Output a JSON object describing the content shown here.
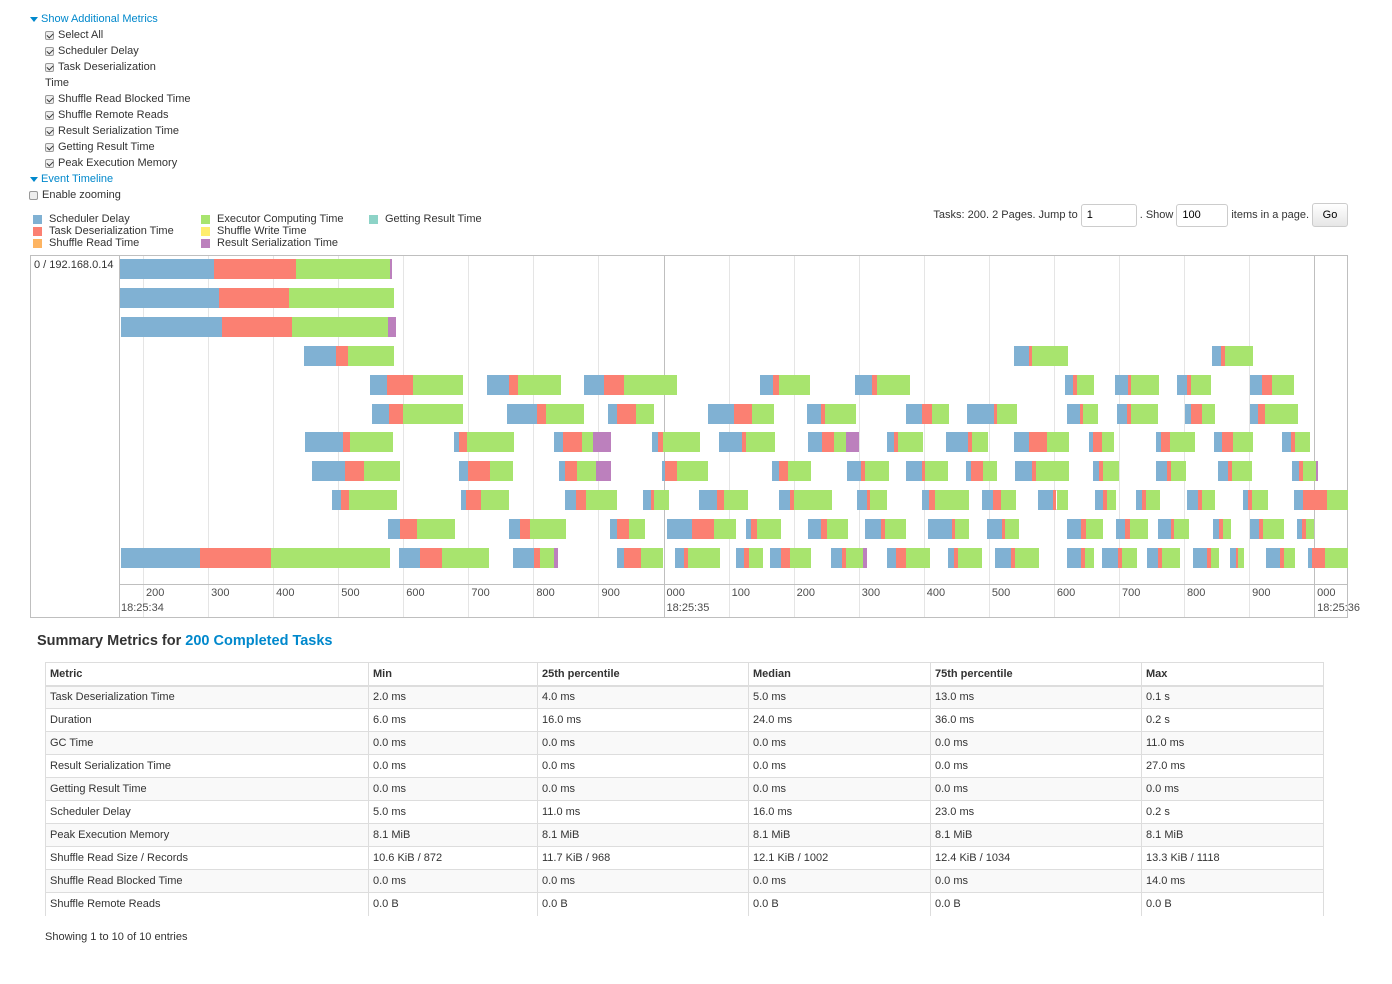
{
  "additional_metrics": {
    "toggle_label": "Show Additional Metrics",
    "checkboxes": [
      {
        "label": "Select All",
        "checked": true
      },
      {
        "label": "Scheduler Delay",
        "checked": true
      },
      {
        "label": "Task Deserialization",
        "label_wrap": "Time",
        "checked": true
      },
      {
        "label": "Shuffle Read Blocked Time",
        "checked": true
      },
      {
        "label": "Shuffle Remote Reads",
        "checked": true
      },
      {
        "label": "Result Serialization Time",
        "checked": true
      },
      {
        "label": "Getting Result Time",
        "checked": true
      },
      {
        "label": "Peak Execution Memory",
        "checked": true
      }
    ]
  },
  "event_timeline": {
    "toggle_label": "Event Timeline",
    "enable_zooming": {
      "label": "Enable zooming",
      "checked": false
    },
    "legend": [
      {
        "label": "Scheduler Delay",
        "color": "#80B1D3"
      },
      {
        "label": "Task Deserialization Time",
        "color": "#FB8072"
      },
      {
        "label": "Shuffle Read Time",
        "color": "#FDB462"
      },
      {
        "label": "Executor Computing Time",
        "color": "#A8E46E"
      },
      {
        "label": "Shuffle Write Time",
        "color": "#FFED6F"
      },
      {
        "label": "Result Serialization Time",
        "color": "#BC80BD"
      },
      {
        "label": "Getting Result Time",
        "color": "#8DD3C7"
      }
    ],
    "pager": {
      "text_tasks": "Tasks: 200. 2 Pages. Jump to",
      "page_value": "1",
      "text_show": ". Show",
      "page_size_value": "100",
      "text_items": "items in a page.",
      "go_label": "Go"
    },
    "executor_label": "0 / 192.168.0.14",
    "x_range_ms": [
      164.6,
      2052
    ],
    "ticks": [
      {
        "ms": 200,
        "label": "200",
        "sub": "18:25:34"
      },
      {
        "ms": 300,
        "label": "300"
      },
      {
        "ms": 400,
        "label": "400"
      },
      {
        "ms": 500,
        "label": "500"
      },
      {
        "ms": 600,
        "label": "600"
      },
      {
        "ms": 700,
        "label": "700"
      },
      {
        "ms": 800,
        "label": "800"
      },
      {
        "ms": 900,
        "label": "900"
      },
      {
        "ms": 1000,
        "label": "000",
        "sub": "18:25:35",
        "major": true
      },
      {
        "ms": 1100,
        "label": "100"
      },
      {
        "ms": 1200,
        "label": "200"
      },
      {
        "ms": 1300,
        "label": "300"
      },
      {
        "ms": 1400,
        "label": "400"
      },
      {
        "ms": 1500,
        "label": "500"
      },
      {
        "ms": 1600,
        "label": "600"
      },
      {
        "ms": 1700,
        "label": "700"
      },
      {
        "ms": 1800,
        "label": "800"
      },
      {
        "ms": 1900,
        "label": "900"
      },
      {
        "ms": 2000,
        "label": "000",
        "sub": "18:25:36",
        "major": true
      }
    ],
    "task_fields": [
      "start_ms",
      "scheduler_delay",
      "deserialization",
      "computing",
      "result_serialization"
    ],
    "rows": [
      [
        [
          164,
          145,
          126,
          145,
          3
        ]
      ],
      [
        [
          164,
          152,
          109,
          160
        ]
      ],
      [
        [
          166,
          155,
          108,
          148,
          12
        ]
      ],
      [
        [
          448,
          49,
          18,
          71
        ],
        [
          1538,
          23,
          6,
          55
        ],
        [
          1843,
          14,
          6,
          43
        ]
      ],
      [
        [
          549,
          26,
          40,
          77
        ],
        [
          729,
          34,
          14,
          66
        ],
        [
          877,
          31,
          32,
          80
        ],
        [
          1149,
          20,
          8,
          48
        ],
        [
          1294,
          26,
          8,
          51
        ],
        [
          1617,
          12,
          6,
          26
        ],
        [
          1694,
          20,
          5,
          42
        ],
        [
          1789,
          15,
          6,
          32
        ],
        [
          1902,
          18,
          15,
          34
        ]
      ],
      [
        [
          552,
          26,
          22,
          92
        ],
        [
          760,
          45,
          15,
          58
        ],
        [
          915,
          14,
          29,
          28
        ],
        [
          1068,
          40,
          28,
          34
        ],
        [
          1220,
          22,
          6,
          48
        ],
        [
          1372,
          26,
          15,
          26
        ],
        [
          1466,
          42,
          5,
          31
        ],
        [
          1620,
          20,
          5,
          22
        ],
        [
          1697,
          15,
          6,
          42
        ],
        [
          1802,
          9,
          17,
          20
        ],
        [
          1902,
          11,
          11,
          51
        ]
      ],
      [
        [
          449,
          58,
          11,
          66
        ],
        [
          678,
          8,
          12,
          72
        ],
        [
          832,
          14,
          28,
          18,
          28
        ],
        [
          983,
          8,
          8,
          57
        ],
        [
          1086,
          35,
          5,
          45
        ],
        [
          1222,
          22,
          18,
          18,
          20
        ],
        [
          1343,
          12,
          6,
          38
        ],
        [
          1434,
          34,
          6,
          25
        ],
        [
          1538,
          23,
          28,
          34
        ],
        [
          1654,
          6,
          14,
          18
        ],
        [
          1757,
          8,
          14,
          38
        ],
        [
          1846,
          12,
          17,
          31
        ],
        [
          1951,
          14,
          5,
          23
        ]
      ],
      [
        [
          460,
          51,
          29,
          55
        ],
        [
          686,
          14,
          34,
          34
        ],
        [
          840,
          9,
          18,
          29,
          23
        ],
        [
          997,
          6,
          17,
          49
        ],
        [
          1166,
          12,
          14,
          34
        ],
        [
          1282,
          22,
          5,
          37
        ],
        [
          1372,
          25,
          5,
          35
        ],
        [
          1465,
          8,
          18,
          22
        ],
        [
          1540,
          26,
          6,
          51
        ],
        [
          1660,
          9,
          6,
          25
        ],
        [
          1757,
          17,
          6,
          23
        ],
        [
          1852,
          15,
          6,
          31
        ],
        [
          1966,
          11,
          6,
          20,
          3
        ]
      ],
      [
        [
          491,
          14,
          11,
          74
        ],
        [
          688,
          9,
          23,
          43
        ],
        [
          848,
          18,
          15,
          48
        ],
        [
          969,
          11,
          6,
          23
        ],
        [
          1054,
          28,
          11,
          37
        ],
        [
          1178,
          17,
          6,
          58
        ],
        [
          1298,
          14,
          6,
          26
        ],
        [
          1397,
          11,
          9,
          52
        ],
        [
          1489,
          17,
          12,
          23
        ],
        [
          1575,
          23,
          6,
          17
        ],
        [
          1663,
          12,
          6,
          15
        ],
        [
          1726,
          9,
          6,
          22
        ],
        [
          1805,
          17,
          5,
          20
        ],
        [
          1891,
          8,
          5,
          25
        ],
        [
          1969,
          14,
          37,
          32
        ]
      ],
      [
        [
          577,
          18,
          26,
          58
        ],
        [
          763,
          17,
          15,
          55
        ],
        [
          917,
          12,
          18,
          25
        ],
        [
          1006,
          37,
          34,
          35
        ],
        [
          1126,
          9,
          8,
          38
        ],
        [
          1222,
          20,
          9,
          32
        ],
        [
          1309,
          26,
          6,
          32
        ],
        [
          1406,
          37,
          5,
          22
        ],
        [
          1497,
          23,
          5,
          22
        ],
        [
          1620,
          22,
          8,
          26
        ],
        [
          1695,
          14,
          8,
          28
        ],
        [
          1760,
          20,
          5,
          23
        ],
        [
          1845,
          9,
          6,
          12
        ],
        [
          1902,
          14,
          6,
          31
        ],
        [
          1974,
          8,
          6,
          11
        ]
      ],
      [
        [
          166,
          122,
          108,
          183
        ],
        [
          594,
          32,
          34,
          72
        ],
        [
          769,
          32,
          9,
          22,
          6
        ],
        [
          928,
          11,
          26,
          34
        ],
        [
          1018,
          14,
          6,
          49
        ],
        [
          1111,
          12,
          8,
          22
        ],
        [
          1163,
          18,
          14,
          32
        ],
        [
          1258,
          17,
          6,
          25,
          6
        ],
        [
          1343,
          14,
          15,
          37
        ],
        [
          1437,
          9,
          6,
          38
        ],
        [
          1509,
          25,
          6,
          37
        ],
        [
          1620,
          22,
          6,
          14
        ],
        [
          1674,
          25,
          6,
          22
        ],
        [
          1743,
          17,
          6,
          28
        ],
        [
          1814,
          22,
          6,
          12
        ],
        [
          1871,
          9,
          3,
          9
        ],
        [
          1926,
          22,
          6,
          17
        ],
        [
          1991,
          6,
          20,
          35
        ]
      ]
    ]
  },
  "summary": {
    "title_prefix": "Summary Metrics for",
    "title_link": "200 Completed Tasks",
    "columns": [
      "Metric",
      "Min",
      "25th percentile",
      "Median",
      "75th percentile",
      "Max"
    ],
    "rows": [
      [
        "Task Deserialization Time",
        "2.0 ms",
        "4.0 ms",
        "5.0 ms",
        "13.0 ms",
        "0.1 s"
      ],
      [
        "Duration",
        "6.0 ms",
        "16.0 ms",
        "24.0 ms",
        "36.0 ms",
        "0.2 s"
      ],
      [
        "GC Time",
        "0.0 ms",
        "0.0 ms",
        "0.0 ms",
        "0.0 ms",
        "11.0 ms"
      ],
      [
        "Result Serialization Time",
        "0.0 ms",
        "0.0 ms",
        "0.0 ms",
        "0.0 ms",
        "27.0 ms"
      ],
      [
        "Getting Result Time",
        "0.0 ms",
        "0.0 ms",
        "0.0 ms",
        "0.0 ms",
        "0.0 ms"
      ],
      [
        "Scheduler Delay",
        "5.0 ms",
        "11.0 ms",
        "16.0 ms",
        "23.0 ms",
        "0.2 s"
      ],
      [
        "Peak Execution Memory",
        "8.1 MiB",
        "8.1 MiB",
        "8.1 MiB",
        "8.1 MiB",
        "8.1 MiB"
      ],
      [
        "Shuffle Read Size / Records",
        "10.6 KiB / 872",
        "11.7 KiB / 968",
        "12.1 KiB / 1002",
        "12.4 KiB / 1034",
        "13.3 KiB / 1118"
      ],
      [
        "Shuffle Read Blocked Time",
        "0.0 ms",
        "0.0 ms",
        "0.0 ms",
        "0.0 ms",
        "14.0 ms"
      ],
      [
        "Shuffle Remote Reads",
        "0.0 B",
        "0.0 B",
        "0.0 B",
        "0.0 B",
        "0.0 B"
      ]
    ],
    "showing": "Showing 1 to 10 of 10 entries"
  }
}
